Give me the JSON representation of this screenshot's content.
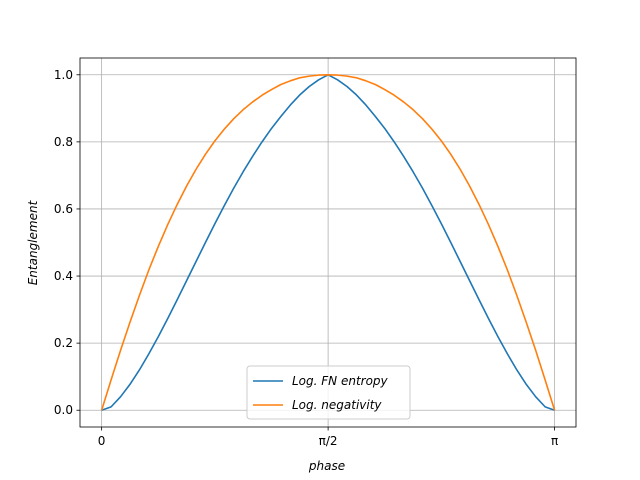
{
  "chart_data": {
    "type": "line",
    "xlabel": "phase",
    "ylabel": "Entanglement",
    "xlim": [
      -0.15,
      3.29
    ],
    "ylim": [
      -0.05,
      1.05
    ],
    "grid": true,
    "legend_position": "lower-center",
    "x_ticks": [
      {
        "value": 0,
        "label": "0"
      },
      {
        "value": 1.5708,
        "label": "π/2"
      },
      {
        "value": 3.1416,
        "label": "π"
      }
    ],
    "y_ticks": [
      {
        "value": 0.0,
        "label": "0.0"
      },
      {
        "value": 0.2,
        "label": "0.2"
      },
      {
        "value": 0.4,
        "label": "0.4"
      },
      {
        "value": 0.6,
        "label": "0.6"
      },
      {
        "value": 0.8,
        "label": "0.8"
      },
      {
        "value": 1.0,
        "label": "1.0"
      }
    ],
    "series": [
      {
        "name": "Log. FN entropy",
        "color": "#1f77b4",
        "x": [
          0,
          0.0654,
          0.1309,
          0.1963,
          0.2618,
          0.3272,
          0.3927,
          0.4581,
          0.5236,
          0.589,
          0.6545,
          0.7199,
          0.7854,
          0.8508,
          0.9163,
          0.9817,
          1.0472,
          1.1126,
          1.1781,
          1.2435,
          1.309,
          1.3744,
          1.4399,
          1.5053,
          1.5708,
          1.6362,
          1.7017,
          1.7671,
          1.8326,
          1.898,
          1.9635,
          2.0289,
          2.0944,
          2.1598,
          2.2253,
          2.2907,
          2.3562,
          2.4216,
          2.4871,
          2.5525,
          2.618,
          2.6834,
          2.7489,
          2.8143,
          2.8798,
          2.9452,
          3.0107,
          3.0761,
          3.1416
        ],
        "y": [
          0,
          0.01,
          0.04,
          0.077,
          0.12,
          0.168,
          0.219,
          0.273,
          0.329,
          0.386,
          0.443,
          0.5,
          0.556,
          0.61,
          0.662,
          0.711,
          0.757,
          0.8,
          0.84,
          0.876,
          0.91,
          0.94,
          0.965,
          0.985,
          1.0,
          0.985,
          0.965,
          0.94,
          0.91,
          0.876,
          0.84,
          0.8,
          0.757,
          0.711,
          0.662,
          0.61,
          0.556,
          0.5,
          0.443,
          0.386,
          0.329,
          0.273,
          0.219,
          0.168,
          0.12,
          0.077,
          0.04,
          0.01,
          0
        ]
      },
      {
        "name": "Log. negativity",
        "color": "#ff7f0e",
        "x": [
          0,
          0.0654,
          0.1309,
          0.1963,
          0.2618,
          0.3272,
          0.3927,
          0.4581,
          0.5236,
          0.589,
          0.6545,
          0.7199,
          0.7854,
          0.8508,
          0.9163,
          0.9817,
          1.0472,
          1.1126,
          1.1781,
          1.2435,
          1.309,
          1.3744,
          1.4399,
          1.5053,
          1.5708,
          1.6362,
          1.7017,
          1.7671,
          1.8326,
          1.898,
          1.9635,
          2.0289,
          2.0944,
          2.1598,
          2.2253,
          2.2907,
          2.3562,
          2.4216,
          2.4871,
          2.5525,
          2.618,
          2.6834,
          2.7489,
          2.8143,
          2.8798,
          2.9452,
          3.0107,
          3.0761,
          3.1416
        ],
        "y": [
          0,
          0.09,
          0.178,
          0.262,
          0.342,
          0.418,
          0.488,
          0.553,
          0.613,
          0.668,
          0.718,
          0.763,
          0.803,
          0.838,
          0.869,
          0.896,
          0.919,
          0.939,
          0.956,
          0.971,
          0.982,
          0.991,
          0.996,
          0.999,
          1.0,
          0.999,
          0.996,
          0.991,
          0.982,
          0.971,
          0.956,
          0.939,
          0.919,
          0.896,
          0.869,
          0.838,
          0.803,
          0.763,
          0.718,
          0.668,
          0.613,
          0.553,
          0.488,
          0.418,
          0.342,
          0.262,
          0.178,
          0.09,
          0
        ]
      }
    ]
  }
}
